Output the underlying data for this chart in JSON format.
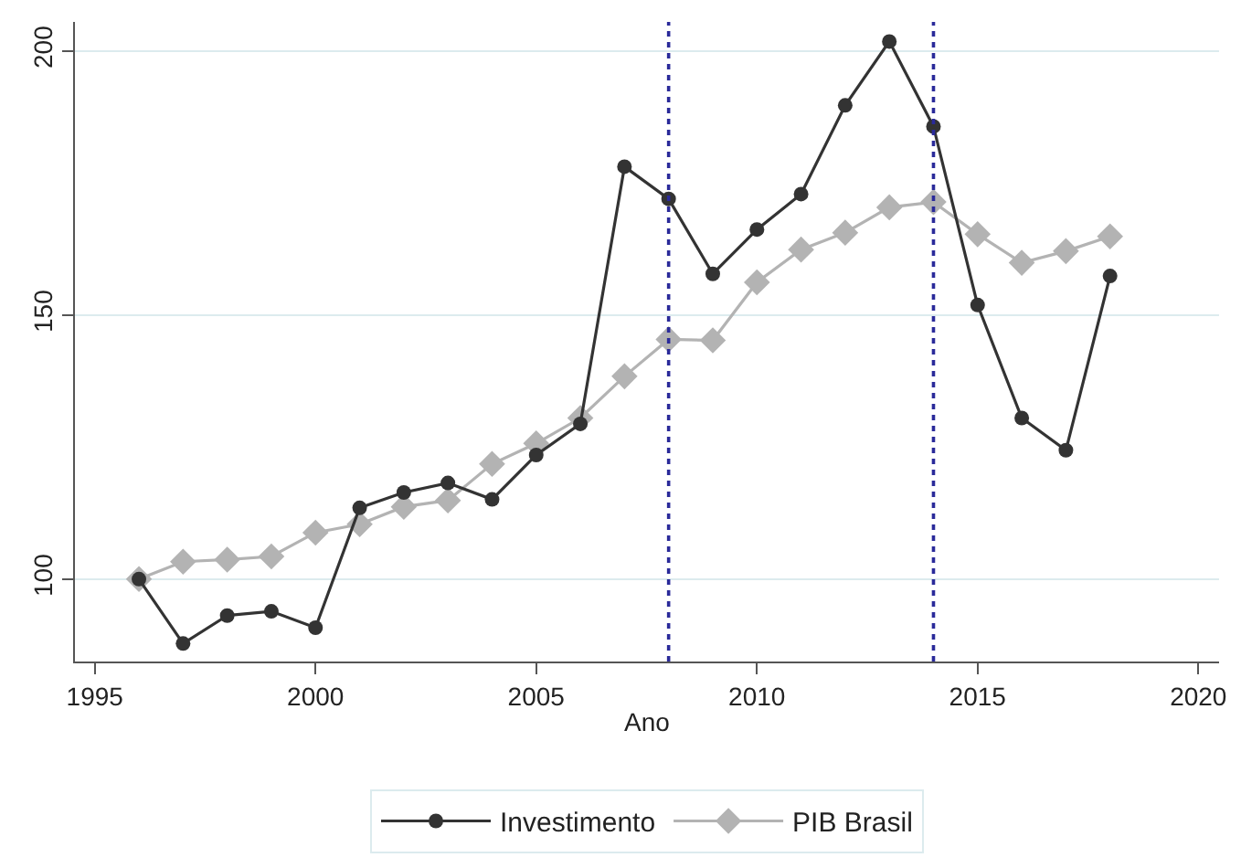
{
  "chart_data": {
    "type": "line",
    "xlabel": "Ano",
    "x": [
      1996,
      1997,
      1998,
      1999,
      2000,
      2001,
      2002,
      2003,
      2004,
      2005,
      2006,
      2007,
      2008,
      2009,
      2010,
      2011,
      2012,
      2013,
      2014,
      2015,
      2016,
      2017,
      2018
    ],
    "series": [
      {
        "name": "Investimento",
        "color": "#333333",
        "marker": "circle",
        "values": [
          100,
          87.8,
          93.1,
          93.9,
          90.8,
          113.5,
          116.4,
          118.2,
          115.1,
          123.5,
          129.4,
          178.1,
          172.0,
          157.8,
          166.2,
          172.9,
          189.7,
          201.8,
          185.7,
          151.9,
          130.5,
          124.4,
          157.4
        ]
      },
      {
        "name": "PIB Brasil",
        "color": "#b3b3b3",
        "marker": "diamond",
        "values": [
          100,
          103.3,
          103.7,
          104.3,
          108.8,
          110.4,
          113.7,
          114.9,
          121.8,
          125.7,
          130.5,
          138.4,
          145.4,
          145.2,
          156.2,
          162.4,
          165.6,
          170.4,
          171.4,
          165.3,
          159.9,
          162.1,
          164.9
        ]
      }
    ],
    "xlim": [
      1994.55,
      2020.47
    ],
    "xticks": [
      1995,
      2000,
      2005,
      2010,
      2015,
      2020
    ],
    "ylim": [
      84.4,
      205.5
    ],
    "yticks": [
      100,
      150,
      200
    ],
    "grid": "y",
    "legend": "bottom",
    "line_style": "solid",
    "ref_lines": [
      {
        "axis": "x",
        "value": 2008,
        "color": "#2a2a9a",
        "line_style": "dotted"
      },
      {
        "axis": "x",
        "value": 2014,
        "color": "#2a2a9a",
        "line_style": "dotted"
      }
    ]
  }
}
